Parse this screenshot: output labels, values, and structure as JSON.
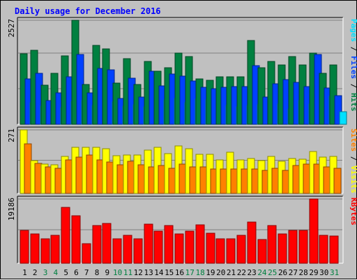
{
  "chart_data": {
    "type": "bar",
    "title": "Daily usage for December 2016",
    "categories": [
      "1",
      "2",
      "3",
      "4",
      "5",
      "6",
      "7",
      "8",
      "9",
      "10",
      "11",
      "12",
      "13",
      "14",
      "15",
      "16",
      "17",
      "18",
      "19",
      "20",
      "21",
      "22",
      "23",
      "24",
      "25",
      "26",
      "27",
      "28",
      "29",
      "30",
      "31"
    ],
    "weekend_days": [
      "3",
      "4",
      "10",
      "11",
      "17",
      "18",
      "24",
      "25",
      "31"
    ],
    "grid": true,
    "panels": [
      {
        "name": "hits-files-pages",
        "ymax_label": "2527",
        "ylim": [
          0,
          2527
        ],
        "legend": [
          "Pages",
          "Files",
          "Hits"
        ],
        "series": [
          {
            "name": "Hits",
            "color": "#008040",
            "values": [
              1720,
              1790,
              950,
              1230,
              1660,
              2527,
              970,
              1920,
              1840,
              1000,
              1600,
              970,
              1530,
              1290,
              1370,
              1730,
              1650,
              1110,
              1060,
              1150,
              1150,
              1150,
              2030,
              1380,
              1530,
              1450,
              1650,
              1450,
              1730,
              1230,
              1450
            ]
          },
          {
            "name": "Files",
            "color": "#0040ff",
            "values": [
              1110,
              1230,
              580,
              770,
              1150,
              1690,
              760,
              1350,
              1320,
              620,
              1120,
              660,
              1290,
              940,
              1220,
              1170,
              1050,
              900,
              860,
              900,
              920,
              920,
              1430,
              660,
              980,
              1080,
              1020,
              920,
              1700,
              880,
              690
            ]
          },
          {
            "name": "Pages",
            "color": "#00e0ff",
            "values": [
              520,
              440,
              430,
              410,
              560,
              570,
              460,
              580,
              540,
              440,
              470,
              420,
              720,
              590,
              630,
              520,
              610,
              590,
              460,
              460,
              420,
              460,
              480,
              400,
              490,
              380,
              570,
              500,
              730,
              680,
              310
            ]
          }
        ]
      },
      {
        "name": "visits-sites",
        "ymax_label": "271",
        "ylim": [
          0,
          271
        ],
        "legend": [
          "Sites",
          "Visits"
        ],
        "series": [
          {
            "name": "Visits",
            "color": "#ffff00",
            "values": [
              271,
              140,
              124,
              122,
              158,
              196,
              198,
              198,
              190,
              162,
              164,
              164,
              184,
              196,
              170,
              202,
              192,
              166,
              166,
              144,
              175,
              142,
              148,
              140,
              158,
              136,
              148,
              146,
              178,
              156,
              158
            ]
          },
          {
            "name": "Sites",
            "color": "#ff8000",
            "values": [
              212,
              128,
              112,
              108,
              142,
              154,
              164,
              142,
              134,
              122,
              138,
              122,
              112,
              120,
              106,
              126,
              112,
              112,
              104,
              104,
              104,
              104,
              104,
              98,
              106,
              98,
              120,
              124,
              124,
              112,
              108
            ]
          }
        ]
      },
      {
        "name": "kbytes",
        "ymax_label": "19186",
        "ylim": [
          0,
          19186
        ],
        "legend": [
          "KBytes"
        ],
        "series": [
          {
            "name": "KBytes",
            "color": "#ff0000",
            "values": [
              9800,
              8700,
              7200,
              8400,
              16600,
              14100,
              5900,
              11200,
              11800,
              7400,
              8400,
              7400,
              11600,
              9600,
              11200,
              8800,
              9600,
              11400,
              8900,
              7400,
              7200,
              8400,
              12300,
              7000,
              11200,
              8700,
              9800,
              9900,
              19186,
              8300,
              8200
            ]
          }
        ]
      }
    ]
  }
}
